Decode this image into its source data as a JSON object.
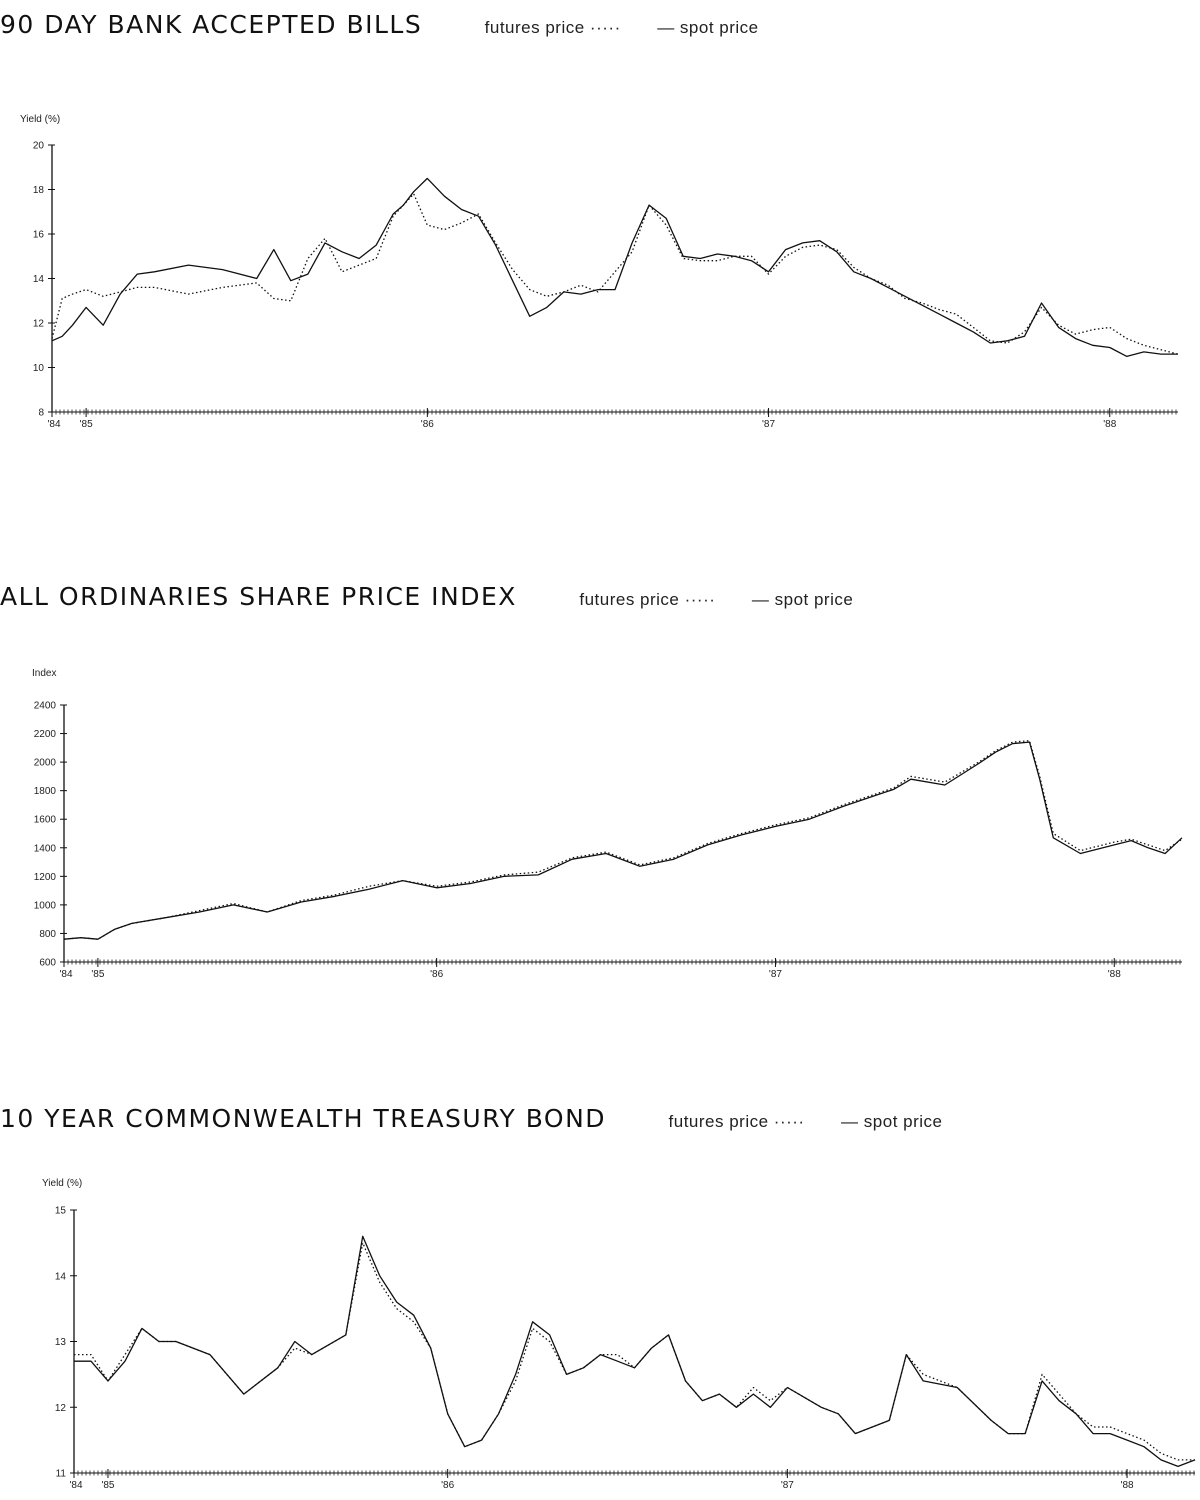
{
  "chart_data": [
    {
      "type": "line",
      "title": "90 DAY BANK ACCEPTED BILLS",
      "ylabel": "Yield (%)",
      "xlabel": "",
      "ylim": [
        8,
        20
      ],
      "yticks": [
        8,
        10,
        12,
        14,
        16,
        18,
        20
      ],
      "ytick_labels": [
        "8",
        "10",
        "12",
        "14",
        "16",
        "18",
        "20"
      ],
      "xlim": [
        1984.9,
        1988.2
      ],
      "xticks": [
        1984.9,
        1985.0,
        1986.0,
        1987.0,
        1988.0
      ],
      "xtick_labels": [
        "'84",
        "'85",
        "'86",
        "'87",
        "'88"
      ],
      "legend": "top, next to title",
      "series": [
        {
          "name": "futures price",
          "style": "dotted",
          "x": [
            1984.9,
            1984.93,
            1984.96,
            1985.0,
            1985.05,
            1985.1,
            1985.15,
            1985.2,
            1985.3,
            1985.4,
            1985.5,
            1985.55,
            1985.6,
            1985.65,
            1985.7,
            1985.75,
            1985.8,
            1985.85,
            1985.9,
            1985.93,
            1985.96,
            1986.0,
            1986.05,
            1986.1,
            1986.15,
            1986.2,
            1986.25,
            1986.3,
            1986.35,
            1986.4,
            1986.45,
            1986.5,
            1986.55,
            1986.6,
            1986.65,
            1986.7,
            1986.75,
            1986.8,
            1986.85,
            1986.9,
            1986.95,
            1987.0,
            1987.05,
            1987.1,
            1987.15,
            1987.2,
            1987.25,
            1987.3,
            1987.35,
            1987.4,
            1987.45,
            1987.5,
            1987.55,
            1987.6,
            1987.65,
            1987.7,
            1987.75,
            1987.8,
            1987.85,
            1987.9,
            1987.95,
            1988.0,
            1988.05,
            1988.1,
            1988.15,
            1988.2
          ],
          "y": [
            11.3,
            13.1,
            13.3,
            13.5,
            13.2,
            13.4,
            13.6,
            13.6,
            13.3,
            13.6,
            13.8,
            13.1,
            13.0,
            14.9,
            15.8,
            14.3,
            14.6,
            14.9,
            16.8,
            17.3,
            17.8,
            16.4,
            16.2,
            16.5,
            16.9,
            15.6,
            14.4,
            13.5,
            13.2,
            13.4,
            13.7,
            13.4,
            14.3,
            15.2,
            17.3,
            16.4,
            14.9,
            14.8,
            14.8,
            15.0,
            15.0,
            14.2,
            15.0,
            15.4,
            15.5,
            15.3,
            14.5,
            14.0,
            13.7,
            13.1,
            12.9,
            12.6,
            12.4,
            11.8,
            11.2,
            11.1,
            11.6,
            12.7,
            11.9,
            11.5,
            11.7,
            11.8,
            11.3,
            11.0,
            10.8,
            10.6
          ]
        },
        {
          "name": "spot price",
          "style": "solid",
          "x": [
            1984.9,
            1984.93,
            1984.96,
            1985.0,
            1985.05,
            1985.1,
            1985.15,
            1985.2,
            1985.3,
            1985.4,
            1985.5,
            1985.55,
            1985.6,
            1985.65,
            1985.7,
            1985.75,
            1985.8,
            1985.85,
            1985.9,
            1985.93,
            1985.96,
            1986.0,
            1986.05,
            1986.1,
            1986.15,
            1986.2,
            1986.25,
            1986.3,
            1986.35,
            1986.4,
            1986.45,
            1986.5,
            1986.55,
            1986.6,
            1986.65,
            1986.7,
            1986.75,
            1986.8,
            1986.85,
            1986.9,
            1986.95,
            1987.0,
            1987.05,
            1987.1,
            1987.15,
            1987.2,
            1987.25,
            1987.3,
            1987.35,
            1987.4,
            1987.45,
            1987.5,
            1987.55,
            1987.6,
            1987.65,
            1987.7,
            1987.75,
            1987.8,
            1987.85,
            1987.9,
            1987.95,
            1988.0,
            1988.05,
            1988.1,
            1988.15,
            1988.2
          ],
          "y": [
            11.2,
            11.4,
            11.9,
            12.7,
            11.9,
            13.3,
            14.2,
            14.3,
            14.6,
            14.4,
            14.0,
            15.3,
            13.9,
            14.2,
            15.6,
            15.2,
            14.9,
            15.5,
            16.9,
            17.3,
            17.9,
            18.5,
            17.7,
            17.1,
            16.8,
            15.5,
            13.9,
            12.3,
            12.7,
            13.4,
            13.3,
            13.5,
            13.5,
            15.6,
            17.3,
            16.7,
            15.0,
            14.9,
            15.1,
            15.0,
            14.8,
            14.3,
            15.3,
            15.6,
            15.7,
            15.2,
            14.3,
            14.0,
            13.6,
            13.2,
            12.8,
            12.4,
            12.0,
            11.6,
            11.1,
            11.2,
            11.4,
            12.9,
            11.8,
            11.3,
            11.0,
            10.9,
            10.5,
            10.7,
            10.6,
            10.6
          ]
        }
      ]
    },
    {
      "type": "line",
      "title": "ALL ORDINARIES SHARE PRICE INDEX",
      "ylabel": "Index",
      "xlabel": "",
      "ylim": [
        600,
        2400
      ],
      "yticks": [
        600,
        800,
        1000,
        1200,
        1400,
        1600,
        1800,
        2000,
        2200,
        2400
      ],
      "ytick_labels": [
        "600",
        "800",
        "1000",
        "1200",
        "1400",
        "1600",
        "1800",
        "2000",
        "2200",
        "2400"
      ],
      "xlim": [
        1984.9,
        1988.2
      ],
      "xticks": [
        1984.9,
        1985.0,
        1986.0,
        1987.0,
        1988.0
      ],
      "xtick_labels": [
        "'84",
        "'85",
        "'86",
        "'87",
        "'88"
      ],
      "legend": "top, next to title",
      "series": [
        {
          "name": "futures price",
          "style": "dotted",
          "x": [
            1984.9,
            1984.95,
            1985.0,
            1985.05,
            1985.1,
            1985.2,
            1985.3,
            1985.4,
            1985.5,
            1985.6,
            1985.7,
            1985.8,
            1985.9,
            1986.0,
            1986.1,
            1986.2,
            1986.3,
            1986.4,
            1986.5,
            1986.6,
            1986.7,
            1986.8,
            1986.9,
            1987.0,
            1987.1,
            1987.2,
            1987.3,
            1987.35,
            1987.4,
            1987.5,
            1987.6,
            1987.65,
            1987.7,
            1987.75,
            1987.78,
            1987.82,
            1987.9,
            1988.0,
            1988.05,
            1988.1,
            1988.15,
            1988.2
          ],
          "y": [
            760,
            770,
            760,
            830,
            870,
            910,
            960,
            1010,
            950,
            1030,
            1070,
            1130,
            1170,
            1130,
            1160,
            1210,
            1230,
            1330,
            1370,
            1280,
            1330,
            1430,
            1500,
            1560,
            1610,
            1700,
            1780,
            1820,
            1900,
            1860,
            2000,
            2080,
            2140,
            2150,
            1900,
            1500,
            1380,
            1440,
            1460,
            1420,
            1380,
            1460
          ]
        },
        {
          "name": "spot price",
          "style": "solid",
          "x": [
            1984.9,
            1984.95,
            1985.0,
            1985.05,
            1985.1,
            1985.2,
            1985.3,
            1985.4,
            1985.5,
            1985.6,
            1985.7,
            1985.8,
            1985.9,
            1986.0,
            1986.1,
            1986.2,
            1986.3,
            1986.4,
            1986.5,
            1986.6,
            1986.7,
            1986.8,
            1986.9,
            1987.0,
            1987.1,
            1987.2,
            1987.3,
            1987.35,
            1987.4,
            1987.5,
            1987.6,
            1987.65,
            1987.7,
            1987.75,
            1987.78,
            1987.82,
            1987.9,
            1988.0,
            1988.05,
            1988.1,
            1988.15,
            1988.2
          ],
          "y": [
            760,
            770,
            760,
            830,
            870,
            910,
            950,
            1000,
            950,
            1020,
            1060,
            1110,
            1170,
            1120,
            1150,
            1200,
            1210,
            1320,
            1360,
            1270,
            1320,
            1420,
            1490,
            1550,
            1600,
            1690,
            1770,
            1810,
            1880,
            1840,
            1990,
            2070,
            2130,
            2140,
            1880,
            1470,
            1360,
            1420,
            1450,
            1400,
            1360,
            1470
          ]
        }
      ]
    },
    {
      "type": "line",
      "title": "10 YEAR COMMONWEALTH TREASURY BOND",
      "ylabel": "Yield (%)",
      "xlabel": "",
      "ylim": [
        11,
        15
      ],
      "yticks": [
        11,
        12,
        13,
        14,
        15
      ],
      "ytick_labels": [
        "11",
        "12",
        "13",
        "14",
        "15"
      ],
      "xlim": [
        1984.9,
        1988.2
      ],
      "xticks": [
        1984.9,
        1985.0,
        1986.0,
        1987.0,
        1988.0
      ],
      "xtick_labels": [
        "'84",
        "'85",
        "'86",
        "'87",
        "'88"
      ],
      "legend": "top, next to title",
      "series": [
        {
          "name": "futures price",
          "style": "dotted",
          "x": [
            1984.9,
            1984.95,
            1985.0,
            1985.05,
            1985.1,
            1985.15,
            1985.2,
            1985.3,
            1985.4,
            1985.5,
            1985.55,
            1985.6,
            1985.7,
            1985.75,
            1985.8,
            1985.85,
            1985.9,
            1985.95,
            1986.0,
            1986.05,
            1986.1,
            1986.15,
            1986.2,
            1986.25,
            1986.3,
            1986.35,
            1986.4,
            1986.45,
            1986.5,
            1986.55,
            1986.6,
            1986.65,
            1986.7,
            1986.75,
            1986.8,
            1986.85,
            1986.9,
            1986.95,
            1987.0,
            1987.1,
            1987.15,
            1987.2,
            1987.3,
            1987.35,
            1987.4,
            1987.5,
            1987.6,
            1987.65,
            1987.7,
            1987.75,
            1987.8,
            1987.85,
            1987.9,
            1987.95,
            1988.0,
            1988.05,
            1988.1,
            1988.15,
            1988.2
          ],
          "y": [
            12.8,
            12.8,
            12.4,
            12.8,
            13.2,
            13.0,
            13.0,
            12.8,
            12.2,
            12.6,
            12.9,
            12.8,
            13.1,
            14.5,
            13.9,
            13.5,
            13.3,
            12.9,
            11.9,
            11.4,
            11.5,
            11.9,
            12.4,
            13.2,
            13.0,
            12.5,
            12.6,
            12.8,
            12.8,
            12.6,
            12.9,
            13.1,
            12.4,
            12.1,
            12.2,
            12.0,
            12.3,
            12.1,
            12.3,
            12.0,
            11.9,
            11.6,
            11.8,
            12.8,
            12.5,
            12.3,
            11.8,
            11.6,
            11.6,
            12.5,
            12.2,
            11.9,
            11.7,
            11.7,
            11.6,
            11.5,
            11.3,
            11.2,
            11.2
          ]
        },
        {
          "name": "spot price",
          "style": "solid",
          "x": [
            1984.9,
            1984.95,
            1985.0,
            1985.05,
            1985.1,
            1985.15,
            1985.2,
            1985.3,
            1985.4,
            1985.5,
            1985.55,
            1985.6,
            1985.7,
            1985.75,
            1985.8,
            1985.85,
            1985.9,
            1985.95,
            1986.0,
            1986.05,
            1986.1,
            1986.15,
            1986.2,
            1986.25,
            1986.3,
            1986.35,
            1986.4,
            1986.45,
            1986.5,
            1986.55,
            1986.6,
            1986.65,
            1986.7,
            1986.75,
            1986.8,
            1986.85,
            1986.9,
            1986.95,
            1987.0,
            1987.1,
            1987.15,
            1987.2,
            1987.3,
            1987.35,
            1987.4,
            1987.5,
            1987.6,
            1987.65,
            1987.7,
            1987.75,
            1987.8,
            1987.85,
            1987.9,
            1987.95,
            1988.0,
            1988.05,
            1988.1,
            1988.15,
            1988.2
          ],
          "y": [
            12.7,
            12.7,
            12.4,
            12.7,
            13.2,
            13.0,
            13.0,
            12.8,
            12.2,
            12.6,
            13.0,
            12.8,
            13.1,
            14.6,
            14.0,
            13.6,
            13.4,
            12.9,
            11.9,
            11.4,
            11.5,
            11.9,
            12.5,
            13.3,
            13.1,
            12.5,
            12.6,
            12.8,
            12.7,
            12.6,
            12.9,
            13.1,
            12.4,
            12.1,
            12.2,
            12.0,
            12.2,
            12.0,
            12.3,
            12.0,
            11.9,
            11.6,
            11.8,
            12.8,
            12.4,
            12.3,
            11.8,
            11.6,
            11.6,
            12.4,
            12.1,
            11.9,
            11.6,
            11.6,
            11.5,
            11.4,
            11.2,
            11.1,
            11.2
          ]
        }
      ]
    }
  ]
}
